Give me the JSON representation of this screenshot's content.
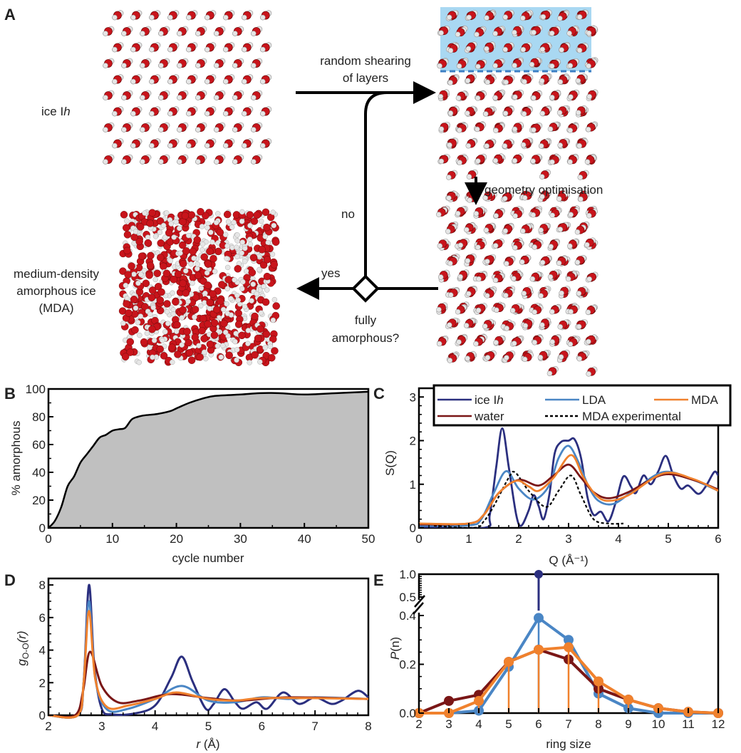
{
  "panel_labels": {
    "a": "A",
    "b": "B",
    "c": "C",
    "d": "D",
    "e": "E"
  },
  "diagram": {
    "ice_label": "ice I",
    "ice_label_italic": "h",
    "shear_line1": "random shearing",
    "shear_line2": "of layers",
    "geom_opt": "geometry optimisation",
    "no": "no",
    "yes": "yes",
    "fully_line1": "fully",
    "fully_line2": "amorphous?",
    "mda_line1": "medium-density",
    "mda_line2": "amorphous ice",
    "mda_line3": "(MDA)",
    "colors": {
      "shear_highlight": "#a9d8f2",
      "dashed": "#3b7fc4",
      "oxygen": "#c8141b",
      "hydrogen": "#e6e6e6"
    }
  },
  "chart_data": [
    {
      "id": "B",
      "type": "area",
      "xlabel": "cycle number",
      "ylabel": "% amorphous",
      "xlim": [
        0,
        50
      ],
      "ylim": [
        0,
        100
      ],
      "xticks": [
        "0",
        "10",
        "20",
        "30",
        "40",
        "50"
      ],
      "yticks": [
        "0",
        "20",
        "40",
        "60",
        "80",
        "100"
      ],
      "fill": "#c0c0c0",
      "points": [
        [
          0,
          0
        ],
        [
          1,
          5
        ],
        [
          2,
          15
        ],
        [
          3,
          30
        ],
        [
          4,
          37
        ],
        [
          5,
          47
        ],
        [
          6,
          53
        ],
        [
          7,
          59
        ],
        [
          8,
          65
        ],
        [
          9,
          67
        ],
        [
          10,
          70
        ],
        [
          11,
          71
        ],
        [
          12,
          72
        ],
        [
          13,
          78
        ],
        [
          14,
          80
        ],
        [
          15,
          81
        ],
        [
          17,
          82
        ],
        [
          19,
          84
        ],
        [
          20,
          86
        ],
        [
          22,
          90
        ],
        [
          24,
          93
        ],
        [
          26,
          95
        ],
        [
          30,
          96
        ],
        [
          33,
          97
        ],
        [
          36,
          97
        ],
        [
          40,
          96
        ],
        [
          45,
          97
        ],
        [
          50,
          98
        ]
      ]
    },
    {
      "id": "C",
      "type": "line",
      "xlabel": "Q (Å⁻¹)",
      "ylabel": "S(Q)",
      "xlim": [
        0,
        6
      ],
      "ylim": [
        0,
        3.2
      ],
      "xticks": [
        "0",
        "1",
        "2",
        "3",
        "4",
        "5",
        "6"
      ],
      "yticks": [
        "0",
        "1",
        "2",
        "3"
      ],
      "legend": "top",
      "series": [
        {
          "name": "ice I",
          "name_italic": "h",
          "color": "#2b2f7f",
          "dash": false,
          "points": [
            [
              0,
              0.02
            ],
            [
              1.3,
              0
            ],
            [
              1.42,
              0.3
            ],
            [
              1.55,
              1.4
            ],
            [
              1.67,
              2.28
            ],
            [
              1.8,
              1.4
            ],
            [
              1.95,
              0.3
            ],
            [
              2.05,
              0.05
            ],
            [
              2.2,
              0.4
            ],
            [
              2.3,
              0.75
            ],
            [
              2.4,
              0.5
            ],
            [
              2.5,
              0.2
            ],
            [
              2.62,
              0.8
            ],
            [
              2.72,
              1.7
            ],
            [
              2.85,
              1.97
            ],
            [
              3.0,
              2.0
            ],
            [
              3.12,
              2.03
            ],
            [
              3.25,
              1.6
            ],
            [
              3.38,
              0.7
            ],
            [
              3.5,
              0.3
            ],
            [
              3.65,
              0.37
            ],
            [
              3.8,
              0.15
            ],
            [
              3.95,
              0.6
            ],
            [
              4.1,
              1.18
            ],
            [
              4.25,
              0.95
            ],
            [
              4.35,
              0.8
            ],
            [
              4.5,
              1.2
            ],
            [
              4.65,
              1.0
            ],
            [
              4.8,
              1.3
            ],
            [
              4.95,
              1.65
            ],
            [
              5.1,
              1.2
            ],
            [
              5.25,
              0.9
            ],
            [
              5.4,
              0.97
            ],
            [
              5.6,
              0.78
            ],
            [
              5.75,
              0.95
            ],
            [
              5.92,
              1.28
            ],
            [
              6,
              1.2
            ]
          ]
        },
        {
          "name": "LDA",
          "color": "#4a86c5",
          "dash": false,
          "points": [
            [
              0,
              0.05
            ],
            [
              1.0,
              0.06
            ],
            [
              1.25,
              0.2
            ],
            [
              1.5,
              0.8
            ],
            [
              1.75,
              1.3
            ],
            [
              2.0,
              0.9
            ],
            [
              2.3,
              0.65
            ],
            [
              2.6,
              0.95
            ],
            [
              2.8,
              1.6
            ],
            [
              3.0,
              1.88
            ],
            [
              3.2,
              1.5
            ],
            [
              3.4,
              0.95
            ],
            [
              3.6,
              0.62
            ],
            [
              3.9,
              0.55
            ],
            [
              4.3,
              0.85
            ],
            [
              4.9,
              1.28
            ],
            [
              5.5,
              1.1
            ],
            [
              6,
              0.85
            ]
          ]
        },
        {
          "name": "MDA",
          "color": "#f0812d",
          "dash": false,
          "points": [
            [
              0,
              0.1
            ],
            [
              1.0,
              0.1
            ],
            [
              1.3,
              0.3
            ],
            [
              1.6,
              0.8
            ],
            [
              1.95,
              1.08
            ],
            [
              2.2,
              0.95
            ],
            [
              2.4,
              0.85
            ],
            [
              2.7,
              1.15
            ],
            [
              3.05,
              1.67
            ],
            [
              3.3,
              1.15
            ],
            [
              3.55,
              0.75
            ],
            [
              3.8,
              0.62
            ],
            [
              4.2,
              0.75
            ],
            [
              4.9,
              1.25
            ],
            [
              5.5,
              1.12
            ],
            [
              6,
              0.85
            ]
          ]
        },
        {
          "name": "water",
          "color": "#7a1616",
          "dash": false,
          "points": [
            [
              0,
              0.08
            ],
            [
              1.0,
              0.1
            ],
            [
              1.3,
              0.3
            ],
            [
              1.6,
              0.8
            ],
            [
              2.0,
              1.1
            ],
            [
              2.4,
              0.97
            ],
            [
              2.7,
              1.2
            ],
            [
              3.0,
              1.45
            ],
            [
              3.25,
              1.15
            ],
            [
              3.5,
              0.82
            ],
            [
              3.8,
              0.68
            ],
            [
              4.2,
              0.82
            ],
            [
              4.9,
              1.22
            ],
            [
              5.5,
              1.1
            ],
            [
              6,
              0.88
            ]
          ]
        },
        {
          "name": "MDA experimental",
          "color": "#000000",
          "dash": true,
          "points": [
            [
              0.3,
              0.05
            ],
            [
              1.1,
              0
            ],
            [
              1.3,
              0.15
            ],
            [
              1.5,
              0.5
            ],
            [
              1.8,
              1.15
            ],
            [
              1.93,
              1.27
            ],
            [
              2.2,
              0.85
            ],
            [
              2.55,
              0.48
            ],
            [
              2.8,
              0.85
            ],
            [
              3.05,
              1.2
            ],
            [
              3.25,
              0.75
            ],
            [
              3.5,
              0.2
            ],
            [
              3.8,
              0.1
            ],
            [
              4.1,
              0.1
            ]
          ]
        }
      ]
    },
    {
      "id": "D",
      "type": "line",
      "xlabel_italic": "r",
      "xlabel": " (Å)",
      "ylabel_g": "g",
      "ylabel_sub": "O-O",
      "ylabel_r": "(r)",
      "xlim": [
        2,
        8
      ],
      "ylim": [
        0,
        8.4
      ],
      "xticks": [
        "2",
        "3",
        "4",
        "5",
        "6",
        "7",
        "8"
      ],
      "yticks": [
        "0",
        "2",
        "4",
        "6",
        "8"
      ],
      "series": [
        {
          "name": "ice Ih",
          "color": "#2b2f7f",
          "points": [
            [
              2,
              0
            ],
            [
              2.55,
              0
            ],
            [
              2.66,
              2
            ],
            [
              2.76,
              8
            ],
            [
              2.86,
              3
            ],
            [
              3.0,
              0.4
            ],
            [
              3.2,
              0.05
            ],
            [
              3.6,
              0.1
            ],
            [
              4.0,
              0.6
            ],
            [
              4.3,
              2.3
            ],
            [
              4.5,
              3.6
            ],
            [
              4.7,
              2.1
            ],
            [
              4.95,
              0.4
            ],
            [
              5.1,
              0.7
            ],
            [
              5.3,
              1.6
            ],
            [
              5.5,
              0.8
            ],
            [
              5.65,
              0.4
            ],
            [
              5.9,
              0.8
            ],
            [
              6.1,
              0.4
            ],
            [
              6.4,
              1.4
            ],
            [
              6.7,
              0.7
            ],
            [
              7.0,
              1.1
            ],
            [
              7.3,
              0.7
            ],
            [
              7.5,
              0.9
            ],
            [
              7.8,
              1.5
            ],
            [
              8,
              1.1
            ]
          ]
        },
        {
          "name": "LDA",
          "color": "#4a86c5",
          "points": [
            [
              2,
              0
            ],
            [
              2.55,
              0
            ],
            [
              2.66,
              2
            ],
            [
              2.76,
              7
            ],
            [
              2.88,
              2.2
            ],
            [
              3.1,
              0.35
            ],
            [
              3.5,
              0.4
            ],
            [
              4.0,
              1.0
            ],
            [
              4.5,
              1.8
            ],
            [
              5.0,
              0.9
            ],
            [
              5.5,
              0.8
            ],
            [
              6.0,
              1.1
            ],
            [
              6.5,
              1.0
            ],
            [
              7,
              1.1
            ],
            [
              8,
              1
            ]
          ]
        },
        {
          "name": "water",
          "color": "#7a1616",
          "points": [
            [
              2,
              0
            ],
            [
              2.5,
              0
            ],
            [
              2.65,
              1.5
            ],
            [
              2.78,
              3.9
            ],
            [
              3.0,
              1.8
            ],
            [
              3.3,
              0.8
            ],
            [
              3.7,
              0.9
            ],
            [
              4.3,
              1.3
            ],
            [
              5.0,
              1.05
            ],
            [
              5.6,
              0.9
            ],
            [
              6.5,
              1.1
            ],
            [
              8,
              1
            ]
          ]
        },
        {
          "name": "MDA",
          "color": "#f0812d",
          "points": [
            [
              2,
              0
            ],
            [
              2.55,
              0
            ],
            [
              2.66,
              2
            ],
            [
              2.76,
              6.4
            ],
            [
              2.88,
              2.2
            ],
            [
              3.1,
              0.5
            ],
            [
              3.5,
              0.6
            ],
            [
              4.0,
              1.0
            ],
            [
              4.4,
              1.4
            ],
            [
              5.0,
              1.0
            ],
            [
              5.5,
              0.9
            ],
            [
              6.0,
              1.05
            ],
            [
              7,
              1.05
            ],
            [
              8,
              1
            ]
          ]
        }
      ]
    },
    {
      "id": "E",
      "type": "line",
      "xlabel": "ring size",
      "ylabel_p": "P",
      "ylabel_n": "(n)",
      "xlim": [
        2,
        12
      ],
      "ylim": [
        0,
        1.0
      ],
      "axis_break": [
        0.4,
        0.5
      ],
      "x": [
        2,
        3,
        4,
        5,
        6,
        7,
        8,
        9,
        10,
        11,
        12
      ],
      "xticks": [
        "2",
        "3",
        "4",
        "5",
        "6",
        "7",
        "8",
        "9",
        "10",
        "11",
        "12"
      ],
      "yticks": [
        "0.0",
        "0.2",
        "0.4",
        "0.5",
        "1.0"
      ],
      "series": [
        {
          "name": "ice Ih",
          "color": "#2b2f7f",
          "values": [
            null,
            null,
            null,
            null,
            1.0,
            null,
            null,
            null,
            null,
            null,
            null
          ]
        },
        {
          "name": "LDA",
          "color": "#4a86c5",
          "values": [
            0,
            0,
            0.01,
            0.19,
            0.39,
            0.3,
            0.08,
            0.02,
            0,
            0,
            0
          ]
        },
        {
          "name": "water",
          "color": "#7a1616",
          "values": [
            0,
            0.05,
            0.075,
            0.21,
            0.26,
            0.22,
            0.1,
            0.055,
            0.02,
            0.005,
            0
          ]
        },
        {
          "name": "MDA",
          "color": "#f0812d",
          "values": [
            0,
            0,
            0.05,
            0.21,
            0.26,
            0.27,
            0.13,
            0.055,
            0.02,
            0.005,
            0
          ]
        }
      ]
    }
  ]
}
